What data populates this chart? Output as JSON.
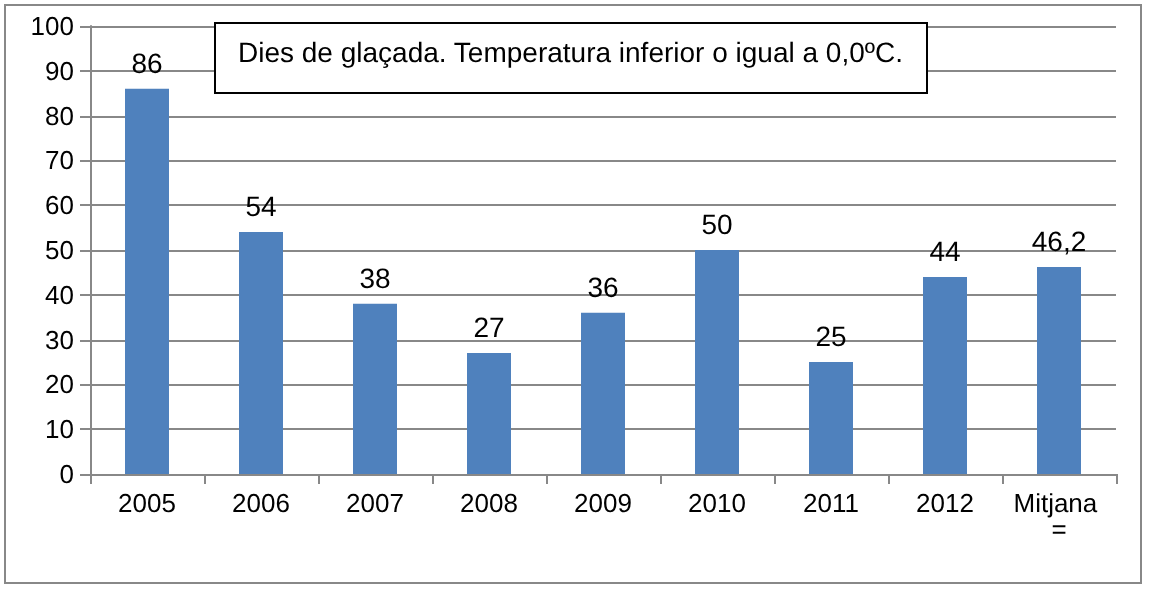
{
  "chart_data": {
    "type": "bar",
    "title": "Dies de glaçada. Temperatura inferior o igual a 0,0ºC.",
    "categories": [
      "2005",
      "2006",
      "2007",
      "2008",
      "2009",
      "2010",
      "2011",
      "2012",
      "Mitjana ="
    ],
    "values": [
      86,
      54,
      38,
      27,
      36,
      50,
      25,
      44,
      46.2
    ],
    "value_labels": [
      "86",
      "54",
      "38",
      "27",
      "36",
      "50",
      "25",
      "44",
      "46,2"
    ],
    "color": "#4f81bd",
    "ylim": [
      0,
      100
    ],
    "yticks": [
      0,
      10,
      20,
      30,
      40,
      50,
      60,
      70,
      80,
      90,
      100
    ],
    "grid": "y"
  }
}
